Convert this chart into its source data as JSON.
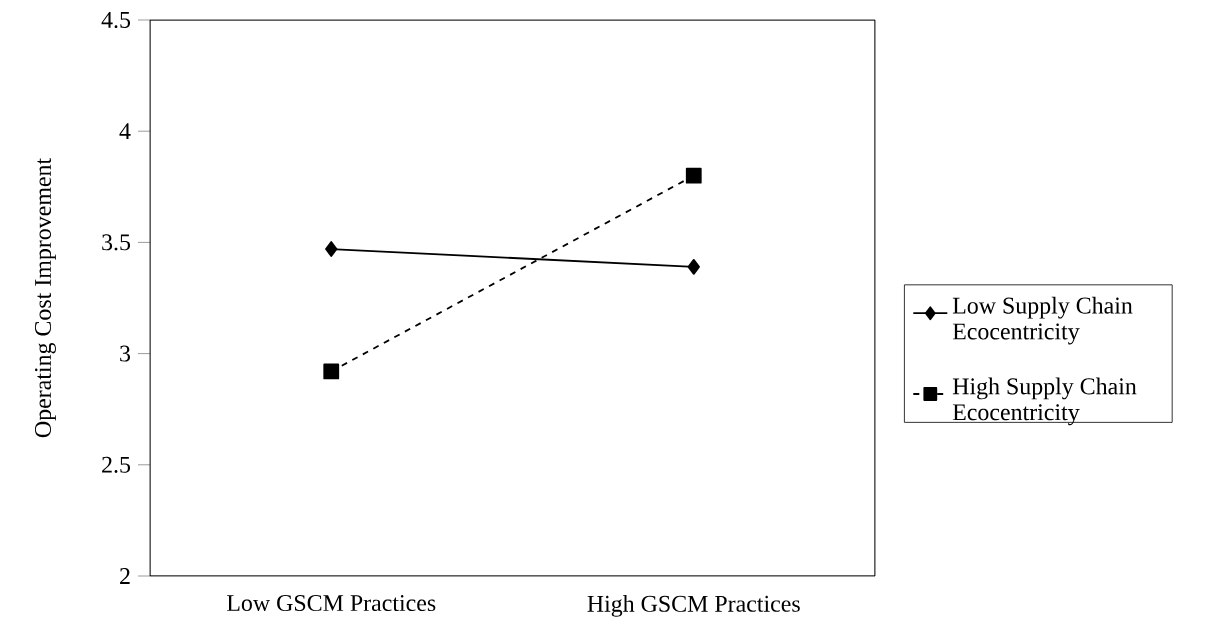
{
  "chart_data": {
    "type": "line",
    "ylabel": "Operating Cost  Improvement",
    "categories": [
      "Low GSCM Practices",
      "High GSCM Practices"
    ],
    "series": [
      {
        "name": "Low Supply Chain Ecocentricity",
        "color": "#000000",
        "values": [
          3.47,
          3.39
        ],
        "marker": "diamond",
        "line_style": "solid"
      },
      {
        "name": "High Supply Chain Ecocentricity",
        "color": "#000000",
        "values": [
          2.92,
          3.8
        ],
        "marker": "square",
        "line_style": "dashed"
      }
    ],
    "ylim": [
      2,
      4.5
    ],
    "yticks": [
      2,
      2.5,
      3,
      3.5,
      4,
      4.5
    ],
    "grid": false,
    "legend": "right"
  }
}
